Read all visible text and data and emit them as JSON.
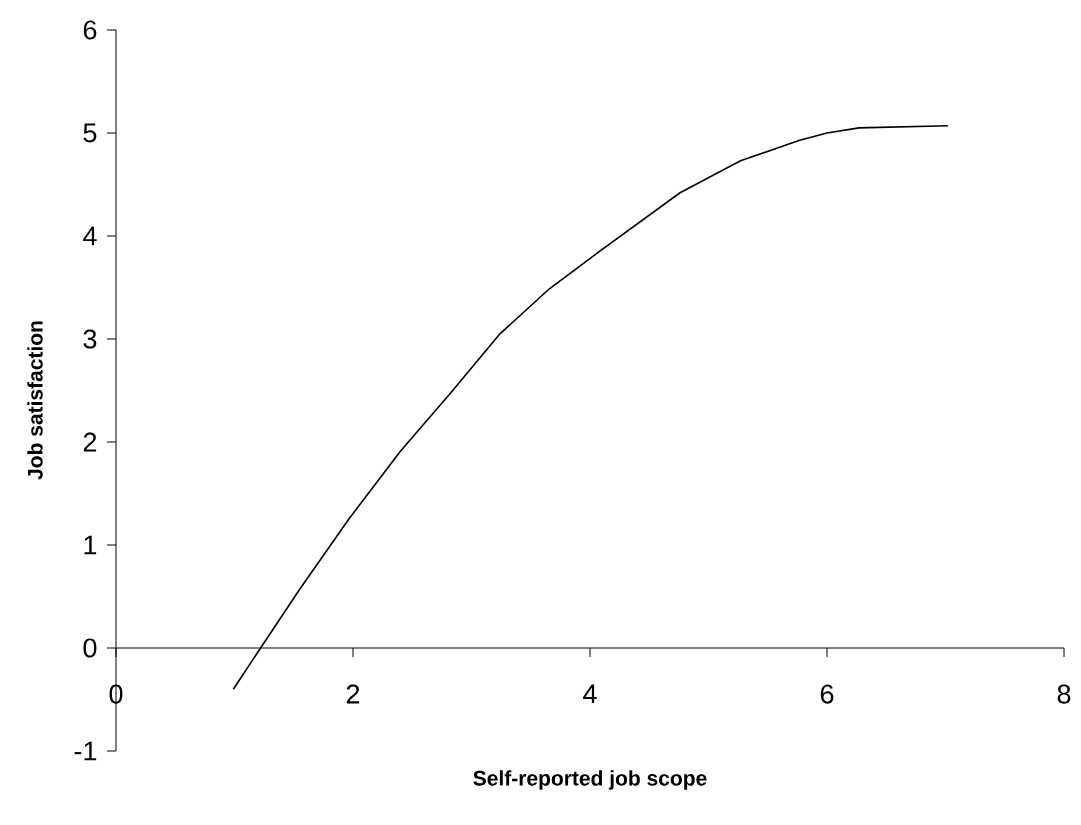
{
  "chart_data": {
    "type": "line",
    "xlabel": "Self-reported job scope",
    "ylabel": "Job satisfaction",
    "x": [
      0.99,
      1.22,
      1.55,
      1.97,
      2.4,
      2.82,
      3.24,
      3.66,
      4.08,
      4.76,
      5.27,
      5.77,
      6.0,
      6.27,
      7.02
    ],
    "series": [
      {
        "color": "#000000",
        "values": [
          -0.4,
          0,
          0.57,
          1.26,
          1.91,
          2.47,
          3.05,
          3.49,
          3.85,
          4.42,
          4.73,
          4.93,
          5.0,
          5.05,
          5.07
        ]
      }
    ],
    "xlim": [
      0,
      8
    ],
    "ylim": [
      -1,
      6
    ],
    "xticks": [
      0,
      2,
      4,
      6,
      8
    ],
    "yticks": [
      -1,
      0,
      1,
      2,
      3,
      4,
      5,
      6
    ],
    "grid": false,
    "marker": "none",
    "line_style": "solid"
  }
}
